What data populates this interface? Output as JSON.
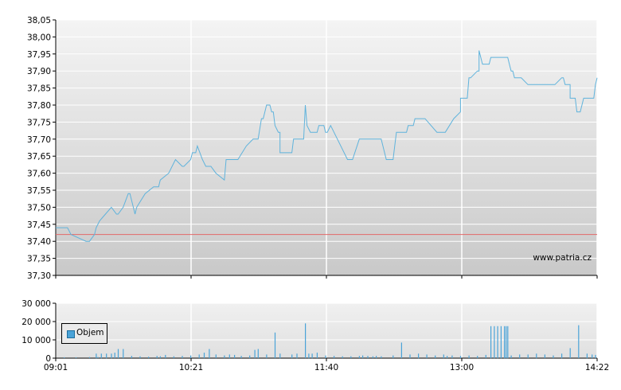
{
  "chart_data": [
    {
      "type": "line",
      "title": "",
      "watermark": "www.patria.cz",
      "x_ticks": [
        "09:01",
        "10:21",
        "11:40",
        "13:00",
        "14:22"
      ],
      "y_ticks": [
        "37,30",
        "37,35",
        "37,40",
        "37,45",
        "37,50",
        "37,55",
        "37,60",
        "37,65",
        "37,70",
        "37,75",
        "37,80",
        "37,85",
        "37,90",
        "37,95",
        "38,00",
        "38,05"
      ],
      "ylim": [
        37.3,
        38.05
      ],
      "xlim_minutes": [
        0,
        321
      ],
      "reference_line": {
        "value": 37.42,
        "color": "#e36a6a"
      },
      "line_color": "#5fb3dc",
      "grid": true,
      "series": [
        {
          "x_minutes": [
            0,
            7,
            9,
            18,
            19,
            20,
            23,
            24,
            26,
            33,
            36,
            37,
            40,
            43,
            44,
            44,
            47,
            48,
            53,
            58,
            60,
            61,
            62,
            67,
            71,
            75,
            76,
            80,
            81,
            83,
            84,
            87,
            87,
            89,
            90,
            92,
            95,
            100,
            101,
            108,
            113,
            113,
            117,
            118,
            120,
            120,
            122,
            123,
            125,
            127,
            128,
            129,
            130,
            130,
            132,
            132,
            133,
            133,
            140,
            141,
            142,
            144,
            147,
            148,
            149,
            149,
            151,
            151,
            155,
            156,
            159,
            160,
            161,
            163,
            173,
            176,
            176,
            180,
            180,
            182,
            184,
            185,
            186,
            188,
            189,
            190,
            193,
            196,
            197,
            196,
            200,
            201,
            202,
            207,
            208,
            209,
            210,
            212,
            213,
            219,
            226,
            228,
            231,
            236,
            240,
            240,
            241,
            242,
            244,
            245,
            246,
            250,
            251,
            251,
            253,
            254,
            256,
            257,
            258,
            261,
            265,
            267,
            268,
            269,
            270,
            271,
            272,
            272,
            276,
            280,
            296,
            300,
            301,
            302,
            305,
            305,
            308,
            309,
            311,
            313,
            314,
            317,
            318,
            319,
            320,
            321
          ],
          "y_values": [
            37.44,
            37.44,
            37.42,
            37.4,
            37.4,
            37.4,
            37.42,
            37.44,
            37.46,
            37.5,
            37.48,
            37.48,
            37.5,
            37.54,
            37.54,
            37.54,
            37.48,
            37.5,
            37.54,
            37.56,
            37.56,
            37.56,
            37.58,
            37.6,
            37.64,
            37.62,
            37.62,
            37.64,
            37.66,
            37.66,
            37.68,
            37.64,
            37.64,
            37.62,
            37.62,
            37.62,
            37.6,
            37.58,
            37.64,
            37.64,
            37.68,
            37.68,
            37.7,
            37.7,
            37.7,
            37.7,
            37.76,
            37.76,
            37.8,
            37.8,
            37.78,
            37.78,
            37.74,
            37.74,
            37.72,
            37.72,
            37.72,
            37.66,
            37.66,
            37.7,
            37.7,
            37.7,
            37.7,
            37.8,
            37.74,
            37.74,
            37.72,
            37.72,
            37.72,
            37.74,
            37.74,
            37.72,
            37.72,
            37.74,
            37.64,
            37.64,
            37.64,
            37.7,
            37.7,
            37.7,
            37.7,
            37.7,
            37.7,
            37.7,
            37.7,
            37.7,
            37.7,
            37.64,
            37.64,
            37.64,
            37.64,
            37.68,
            37.72,
            37.72,
            37.72,
            37.74,
            37.74,
            37.74,
            37.76,
            37.76,
            37.72,
            37.72,
            37.72,
            37.76,
            37.78,
            37.82,
            37.82,
            37.82,
            37.82,
            37.88,
            37.88,
            37.9,
            37.9,
            37.96,
            37.92,
            37.92,
            37.92,
            37.92,
            37.94,
            37.94,
            37.94,
            37.94,
            37.94,
            37.92,
            37.9,
            37.9,
            37.88,
            37.88,
            37.88,
            37.86,
            37.86,
            37.88,
            37.88,
            37.86,
            37.86,
            37.82,
            37.82,
            37.78,
            37.78,
            37.82,
            37.82,
            37.82,
            37.82,
            37.82,
            37.86,
            37.88
          ]
        }
      ]
    },
    {
      "type": "bar",
      "title": "",
      "y_ticks": [
        "0",
        "10 000",
        "20 000",
        "30 000"
      ],
      "ylim": [
        0,
        30000
      ],
      "legend": {
        "label": "Objem",
        "placement": "top-left"
      },
      "bar_color": "#4aa3d8",
      "series": [
        {
          "name": "Objem",
          "x_minutes": [
            5,
            12,
            20,
            25,
            24,
            27,
            30,
            33,
            35,
            37,
            40,
            45,
            50,
            55,
            60,
            62,
            65,
            70,
            75,
            80,
            85,
            88,
            91,
            95,
            100,
            103,
            106,
            110,
            115,
            118,
            120,
            125,
            130,
            133,
            140,
            143,
            148,
            150,
            152,
            155,
            160,
            165,
            170,
            175,
            180,
            182,
            185,
            188,
            190,
            193,
            200,
            205,
            210,
            215,
            220,
            225,
            230,
            232,
            235,
            240,
            245,
            250,
            255,
            258,
            260,
            262,
            264,
            266,
            267,
            268,
            270,
            275,
            280,
            285,
            290,
            295,
            300,
            305,
            310,
            315,
            318,
            320
          ],
          "values": [
            500,
            500,
            600,
            600,
            2500,
            2500,
            2500,
            2500,
            3000,
            5000,
            5000,
            1200,
            1000,
            800,
            1200,
            1000,
            1800,
            1000,
            1200,
            1500,
            2000,
            3000,
            5000,
            2000,
            1500,
            2000,
            1800,
            1200,
            1500,
            4500,
            5000,
            2000,
            14000,
            2500,
            2000,
            2500,
            19000,
            2500,
            2500,
            3000,
            1500,
            1200,
            1000,
            1000,
            1200,
            1500,
            1200,
            1000,
            1200,
            1000,
            1500,
            8500,
            2000,
            2500,
            2000,
            1500,
            2000,
            1200,
            1500,
            1200,
            1500,
            1200,
            1800,
            17500,
            17500,
            17500,
            17500,
            17500,
            17500,
            17500,
            1500,
            2000,
            2000,
            2500,
            2000,
            1500,
            2500,
            5500,
            18000,
            2500,
            2000,
            1800
          ]
        }
      ]
    }
  ]
}
